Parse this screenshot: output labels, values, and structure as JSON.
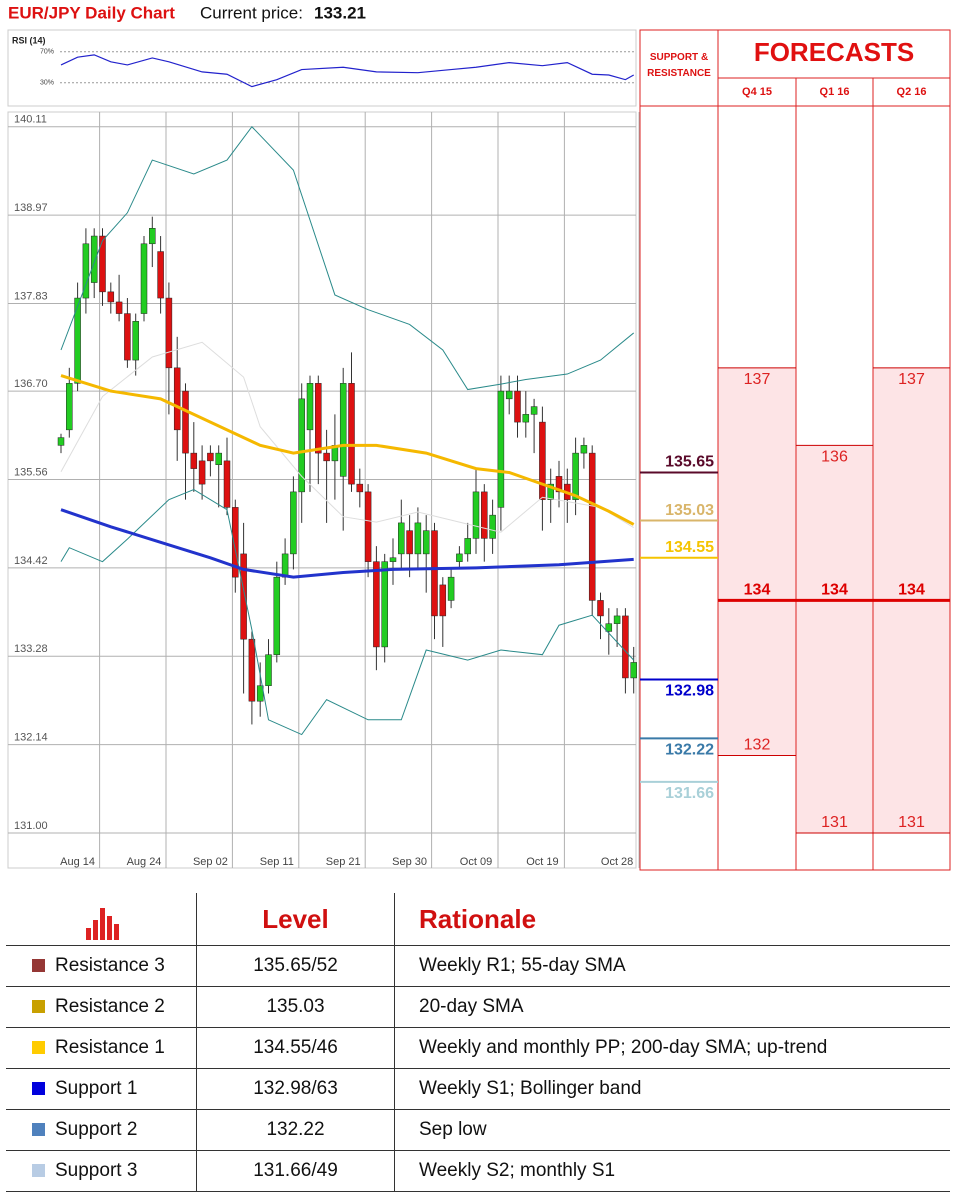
{
  "header": {
    "title": "EUR/JPY Daily Chart",
    "price_label": "Current price:",
    "price": 133.21
  },
  "chart_data": {
    "type": "candlestick",
    "up_color": "#22cc22",
    "down_color": "#dd1111",
    "ylim": [
      130.6,
      140.3
    ],
    "yticks": [
      140.11,
      138.97,
      137.83,
      {
        "value": 136.7,
        "label": "136.70"
      },
      135.56,
      134.42,
      133.28,
      132.14,
      {
        "value": 131,
        "label": "131.00"
      }
    ],
    "grid": true,
    "categories": [
      null,
      null,
      "Aug 14",
      null,
      null,
      null,
      null,
      null,
      null,
      null,
      "Aug 24",
      null,
      null,
      null,
      null,
      null,
      null,
      null,
      "Sep 02",
      null,
      null,
      null,
      null,
      null,
      null,
      null,
      "Sep 11",
      null,
      null,
      null,
      null,
      null,
      null,
      null,
      "Sep 21",
      null,
      null,
      null,
      null,
      null,
      null,
      null,
      "Sep 30",
      null,
      null,
      null,
      null,
      null,
      null,
      null,
      "Oct 09",
      null,
      null,
      null,
      null,
      null,
      null,
      null,
      "Oct 19",
      null,
      null,
      null,
      null,
      null,
      null,
      null,
      null,
      "Oct 28",
      null,
      null
    ],
    "candles": [
      [
        136.0,
        136.15,
        135.9,
        136.1
      ],
      [
        136.2,
        137.0,
        136.1,
        136.8
      ],
      [
        136.8,
        138.1,
        136.7,
        137.9
      ],
      [
        137.9,
        138.8,
        137.7,
        138.6
      ],
      [
        138.1,
        138.8,
        137.9,
        138.7
      ],
      [
        138.7,
        138.8,
        137.8,
        137.98
      ],
      [
        137.98,
        138.1,
        137.7,
        137.85
      ],
      [
        137.85,
        138.2,
        137.6,
        137.7
      ],
      [
        137.7,
        137.9,
        137.0,
        137.1
      ],
      [
        137.1,
        137.7,
        136.9,
        137.6
      ],
      [
        137.7,
        138.7,
        137.6,
        138.6
      ],
      [
        138.6,
        138.95,
        138.3,
        138.8
      ],
      [
        138.5,
        138.7,
        137.7,
        137.9
      ],
      [
        137.9,
        138.1,
        136.4,
        137.0
      ],
      [
        137.0,
        137.4,
        135.8,
        136.2
      ],
      [
        136.7,
        136.8,
        135.3,
        135.9
      ],
      [
        135.9,
        136.3,
        135.4,
        135.7
      ],
      [
        135.8,
        136.0,
        135.3,
        135.5
      ],
      [
        135.9,
        136.0,
        135.6,
        135.8
      ],
      [
        135.75,
        136.0,
        135.2,
        135.9
      ],
      [
        135.8,
        136.1,
        135.1,
        135.2
      ],
      [
        135.2,
        135.3,
        134.1,
        134.3
      ],
      [
        134.6,
        135.0,
        132.8,
        133.5
      ],
      [
        133.5,
        133.6,
        132.4,
        132.7
      ],
      [
        132.7,
        133.2,
        132.5,
        132.9
      ],
      [
        132.9,
        133.5,
        132.8,
        133.3
      ],
      [
        133.3,
        134.5,
        133.2,
        134.3
      ],
      [
        134.3,
        134.8,
        134.2,
        134.6
      ],
      [
        134.6,
        135.6,
        134.4,
        135.4
      ],
      [
        135.4,
        136.8,
        135.0,
        136.6
      ],
      [
        136.2,
        136.9,
        135.4,
        136.8
      ],
      [
        136.8,
        136.9,
        135.5,
        135.9
      ],
      [
        135.9,
        136.2,
        135.0,
        135.8
      ],
      [
        135.8,
        136.4,
        135.3,
        136.0
      ],
      [
        135.6,
        137.0,
        134.9,
        136.8
      ],
      [
        136.8,
        137.2,
        135.4,
        135.5
      ],
      [
        135.5,
        135.7,
        135.2,
        135.4
      ],
      [
        135.4,
        135.5,
        134.3,
        134.5
      ],
      [
        134.5,
        134.7,
        133.1,
        133.4
      ],
      [
        133.4,
        134.6,
        133.2,
        134.5
      ],
      [
        134.5,
        134.8,
        134.2,
        134.55
      ],
      [
        134.6,
        135.3,
        134.4,
        135.0
      ],
      [
        134.9,
        135.1,
        134.3,
        134.6
      ],
      [
        134.6,
        135.2,
        134.4,
        135.0
      ],
      [
        134.6,
        135.1,
        134.1,
        134.9
      ],
      [
        134.9,
        135.0,
        133.5,
        133.8
      ],
      [
        134.2,
        134.3,
        133.4,
        133.8
      ],
      [
        134.0,
        134.4,
        133.9,
        134.3
      ],
      [
        134.5,
        134.7,
        134.4,
        134.6
      ],
      [
        134.6,
        135.0,
        134.5,
        134.8
      ],
      [
        134.8,
        135.7,
        134.6,
        135.4
      ],
      [
        135.4,
        135.5,
        134.5,
        134.8
      ],
      [
        134.8,
        135.3,
        134.6,
        135.1
      ],
      [
        135.2,
        136.9,
        134.9,
        136.7
      ],
      [
        136.6,
        136.9,
        136.4,
        136.7
      ],
      [
        136.7,
        136.9,
        136.1,
        136.3
      ],
      [
        136.3,
        136.7,
        136.1,
        136.4
      ],
      [
        136.4,
        136.6,
        135.9,
        136.5
      ],
      [
        136.3,
        136.5,
        134.9,
        135.3
      ],
      [
        135.3,
        135.7,
        135.0,
        135.5
      ],
      [
        135.6,
        135.8,
        135.2,
        135.4
      ],
      [
        135.5,
        135.7,
        135.0,
        135.3
      ],
      [
        135.3,
        136.1,
        135.1,
        135.9
      ],
      [
        135.9,
        136.1,
        135.7,
        136.0
      ],
      [
        135.9,
        136.0,
        133.8,
        134.0
      ],
      [
        134.0,
        134.1,
        133.5,
        133.8
      ],
      [
        133.6,
        133.9,
        133.3,
        133.7
      ],
      [
        133.7,
        133.9,
        133.4,
        133.8
      ],
      [
        133.8,
        133.9,
        132.8,
        133.0
      ],
      [
        133.0,
        133.4,
        132.8,
        133.2
      ]
    ],
    "lines": [
      {
        "color": "#dddddd",
        "width": 1,
        "x": [
          0,
          5,
          11,
          17,
          22,
          24,
          29,
          34,
          38,
          43,
          48,
          53,
          58,
          65,
          69
        ],
        "values": [
          135.66,
          136.63,
          137.14,
          137.33,
          136.88,
          136.24,
          135.6,
          135.08,
          135.01,
          135.14,
          135.01,
          134.88,
          135.33,
          135.2,
          134.94
        ]
      },
      {
        "color": "#2a8a8a",
        "width": 1,
        "x": [
          0,
          5,
          8,
          11,
          16,
          20,
          23,
          28,
          33,
          37,
          42,
          46,
          49,
          53,
          56,
          61,
          65,
          69
        ],
        "values": [
          137.23,
          138.64,
          139.0,
          139.68,
          139.5,
          139.68,
          140.11,
          139.55,
          137.94,
          137.75,
          137.56,
          137.23,
          136.72,
          136.79,
          136.85,
          136.92,
          137.1,
          137.45
        ]
      },
      {
        "color": "#2a8a8a",
        "width": 1,
        "x": [
          0,
          1,
          5,
          8,
          13,
          16,
          20,
          23,
          25,
          29,
          32,
          37,
          41,
          44,
          49,
          53,
          58,
          60,
          64,
          69
        ],
        "values": [
          134.5,
          134.68,
          134.5,
          134.79,
          135.3,
          135.43,
          135.17,
          133.62,
          132.46,
          132.27,
          132.72,
          132.46,
          132.46,
          133.36,
          133.23,
          133.36,
          133.3,
          133.68,
          133.81,
          133.23
        ]
      },
      {
        "color": "#f5b800",
        "width": 3,
        "x": [
          0,
          6,
          12,
          18,
          24,
          28,
          34,
          38,
          44,
          50,
          54,
          58,
          62,
          66,
          69
        ],
        "values": [
          136.9,
          136.7,
          136.6,
          136.3,
          136.0,
          135.9,
          136.0,
          136.0,
          135.9,
          135.7,
          135.65,
          135.5,
          135.35,
          135.15,
          134.98
        ]
      },
      {
        "color": "#2233cc",
        "width": 3,
        "x": [
          0,
          6,
          12,
          18,
          22,
          28,
          34,
          40,
          50,
          60,
          69
        ],
        "values": [
          135.17,
          134.95,
          134.75,
          134.55,
          134.4,
          134.3,
          134.36,
          134.4,
          134.42,
          134.46,
          134.53
        ]
      }
    ],
    "rsi": {
      "title": "RSI (14)",
      "ylim": [
        0,
        100
      ],
      "yticks": [
        {
          "value": 70,
          "label": "70%"
        },
        {
          "value": 30,
          "label": "30%"
        }
      ],
      "color": "#2222cc",
      "x": [
        0,
        2,
        4,
        6,
        8,
        11,
        13,
        17,
        20,
        23,
        26,
        29,
        34,
        38,
        43,
        47,
        50,
        54,
        58,
        61,
        64,
        66,
        68,
        69
      ],
      "values": [
        53,
        63,
        66,
        57,
        53,
        62,
        57,
        44,
        41,
        25,
        34,
        47,
        50,
        44,
        43,
        47,
        50,
        56,
        52,
        56,
        41,
        40,
        34,
        40
      ]
    }
  },
  "forecasts": {
    "title": "FORECASTS",
    "sr_label": "SUPPORT & RESISTANCE",
    "levels": [
      {
        "value": 135.65,
        "color": "#5a0a2a"
      },
      {
        "value": 135.03,
        "color": "#d9b56a"
      },
      {
        "value": 134.55,
        "color": "#f5c400"
      },
      {
        "value": 132.98,
        "color": "#0000cc"
      },
      {
        "value": 132.22,
        "color": "#3a7aa8"
      },
      {
        "value": 131.66,
        "color": "#a9d0d8"
      }
    ],
    "columns": [
      {
        "label": "Q4 15",
        "high": 137,
        "mid": 134,
        "low": 132
      },
      {
        "label": "Q1 16",
        "high": 136,
        "mid": 134,
        "low": 131
      },
      {
        "label": "Q2 16",
        "high": 137,
        "mid": 134,
        "low": 131
      }
    ]
  },
  "table": {
    "header": {
      "level": "Level",
      "rationale": "Rationale"
    },
    "rows": [
      {
        "color": "#953735",
        "name": "Resistance 3",
        "level": "135.65/52",
        "rationale": "Weekly R1; 55-day SMA"
      },
      {
        "color": "#c8a000",
        "name": "Resistance 2",
        "level": 135.03,
        "rationale": "20-day SMA"
      },
      {
        "color": "#ffcc00",
        "name": "Resistance 1",
        "level": "134.55/46",
        "rationale": "Weekly and monthly PP; 200-day SMA; up-trend"
      },
      {
        "color": "#0000dd",
        "name": "Support 1",
        "level": "132.98/63",
        "rationale": "Weekly S1; Bollinger band"
      },
      {
        "color": "#4f81bd",
        "name": "Support 2",
        "level": 132.22,
        "rationale": "Sep low"
      },
      {
        "color": "#b8cce4",
        "name": "Support 3",
        "level": "131.66/49",
        "rationale": "Weekly S2; monthly S1"
      }
    ]
  }
}
